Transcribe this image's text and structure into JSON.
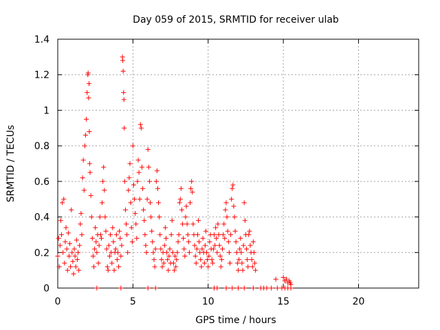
{
  "colors": {
    "series": "#ff0000",
    "grid": "#a0a0a0",
    "axis": "#000000",
    "background": "#ffffff"
  },
  "chart_data": {
    "type": "scatter",
    "title": "Day 059 of 2015, SRMTID for receiver ulab",
    "xlabel": "GPS time / hours",
    "ylabel": "SRMTID / TECUs",
    "xlim": [
      0,
      24
    ],
    "ylim": [
      0,
      1.4
    ],
    "grid": true,
    "marker": "+",
    "xticks": [
      0,
      5,
      10,
      15,
      20
    ],
    "yticks": [
      0,
      0.2,
      0.4,
      0.6,
      0.8,
      1,
      1.2,
      1.4
    ],
    "xtick_labels": [
      "0",
      "5",
      "10",
      "15",
      "20"
    ],
    "ytick_labels": [
      "0",
      "0.2",
      "0.4",
      "0.6",
      "0.8",
      "1",
      "1.2",
      "1.4"
    ],
    "series": [
      {
        "name": "SRMTID",
        "points": [
          [
            0.0,
            0.18
          ],
          [
            0.05,
            0.28
          ],
          [
            0.1,
            0.12
          ],
          [
            0.15,
            0.24
          ],
          [
            0.2,
            0.38
          ],
          [
            0.25,
            0.3
          ],
          [
            0.3,
            0.48
          ],
          [
            0.35,
            0.2
          ],
          [
            0.4,
            0.5
          ],
          [
            0.45,
            0.14
          ],
          [
            0.5,
            0.26
          ],
          [
            0.55,
            0.34
          ],
          [
            0.6,
            0.22
          ],
          [
            0.65,
            0.1
          ],
          [
            0.7,
            0.31
          ],
          [
            0.75,
            0.18
          ],
          [
            0.8,
            0.25
          ],
          [
            0.85,
            0.12
          ],
          [
            0.9,
            0.44
          ],
          [
            0.95,
            0.2
          ],
          [
            1.0,
            0.15
          ],
          [
            1.05,
            0.08
          ],
          [
            1.1,
            0.22
          ],
          [
            1.15,
            0.18
          ],
          [
            1.2,
            0.12
          ],
          [
            1.25,
            0.27
          ],
          [
            1.3,
            0.16
          ],
          [
            1.35,
            0.2
          ],
          [
            1.4,
            0.1
          ],
          [
            1.45,
            0.24
          ],
          [
            1.5,
            0.36
          ],
          [
            1.55,
            0.42
          ],
          [
            1.6,
            0.3
          ],
          [
            1.65,
            0.62
          ],
          [
            1.7,
            0.72
          ],
          [
            1.75,
            0.55
          ],
          [
            1.8,
            0.8
          ],
          [
            1.85,
            0.86
          ],
          [
            1.9,
            0.95
          ],
          [
            1.95,
            1.1
          ],
          [
            2.0,
            1.2
          ],
          [
            2.02,
            1.21
          ],
          [
            2.05,
            1.07
          ],
          [
            2.08,
            1.15
          ],
          [
            2.1,
            0.88
          ],
          [
            2.12,
            0.7
          ],
          [
            2.15,
            0.65
          ],
          [
            2.2,
            0.52
          ],
          [
            2.25,
            0.4
          ],
          [
            2.3,
            0.28
          ],
          [
            2.35,
            0.18
          ],
          [
            2.4,
            0.12
          ],
          [
            2.45,
            0.22
          ],
          [
            2.5,
            0.34
          ],
          [
            2.55,
            0.26
          ],
          [
            2.6,
            0.2
          ],
          [
            2.65,
            0.3
          ],
          [
            2.7,
            0.14
          ],
          [
            2.75,
            0.24
          ],
          [
            2.8,
            0.4
          ],
          [
            2.85,
            0.3
          ],
          [
            2.9,
            0.28
          ],
          [
            2.95,
            0.48
          ],
          [
            3.0,
            0.6
          ],
          [
            3.05,
            0.68
          ],
          [
            3.1,
            0.55
          ],
          [
            3.15,
            0.4
          ],
          [
            3.2,
            0.32
          ],
          [
            3.25,
            0.22
          ],
          [
            3.3,
            0.12
          ],
          [
            3.35,
            0.1
          ],
          [
            3.4,
            0.24
          ],
          [
            3.45,
            0.18
          ],
          [
            3.5,
            0.3
          ],
          [
            3.55,
            0.2
          ],
          [
            3.6,
            0.14
          ],
          [
            3.65,
            0.34
          ],
          [
            3.7,
            0.26
          ],
          [
            3.75,
            0.1
          ],
          [
            3.8,
            0.2
          ],
          [
            3.85,
            0.22
          ],
          [
            3.9,
            0.3
          ],
          [
            3.95,
            0.16
          ],
          [
            4.0,
            0.2
          ],
          [
            4.05,
            0.12
          ],
          [
            4.1,
            0.32
          ],
          [
            4.15,
            0.28
          ],
          [
            4.2,
            0.18
          ],
          [
            4.25,
            0.24
          ],
          [
            4.3,
            1.3
          ],
          [
            4.32,
            1.28
          ],
          [
            4.35,
            1.22
          ],
          [
            4.38,
            1.1
          ],
          [
            4.4,
            1.06
          ],
          [
            4.42,
            0.9
          ],
          [
            4.45,
            0.6
          ],
          [
            4.5,
            0.44
          ],
          [
            4.55,
            0.36
          ],
          [
            4.6,
            0.3
          ],
          [
            4.65,
            0.2
          ],
          [
            4.7,
            0.55
          ],
          [
            4.75,
            0.62
          ],
          [
            4.8,
            0.7
          ],
          [
            4.85,
            0.48
          ],
          [
            4.9,
            0.34
          ],
          [
            4.95,
            0.26
          ],
          [
            5.0,
            0.8
          ],
          [
            5.05,
            0.58
          ],
          [
            5.1,
            0.5
          ],
          [
            5.15,
            0.42
          ],
          [
            5.2,
            0.36
          ],
          [
            5.25,
            0.28
          ],
          [
            5.3,
            0.6
          ],
          [
            5.35,
            0.72
          ],
          [
            5.4,
            0.65
          ],
          [
            5.45,
            0.5
          ],
          [
            5.5,
            0.92
          ],
          [
            5.55,
            0.9
          ],
          [
            5.6,
            0.68
          ],
          [
            5.65,
            0.56
          ],
          [
            5.7,
            0.44
          ],
          [
            5.75,
            0.38
          ],
          [
            5.8,
            0.3
          ],
          [
            5.85,
            0.24
          ],
          [
            5.9,
            0.2
          ],
          [
            5.95,
            0.5
          ],
          [
            6.0,
            0.78
          ],
          [
            6.05,
            0.68
          ],
          [
            6.1,
            0.6
          ],
          [
            6.15,
            0.48
          ],
          [
            6.2,
            0.4
          ],
          [
            6.25,
            0.32
          ],
          [
            6.3,
            0.26
          ],
          [
            6.35,
            0.2
          ],
          [
            6.4,
            0.16
          ],
          [
            6.45,
            0.12
          ],
          [
            6.5,
            0.22
          ],
          [
            6.55,
            0.6
          ],
          [
            6.6,
            0.66
          ],
          [
            6.65,
            0.56
          ],
          [
            6.7,
            0.48
          ],
          [
            6.75,
            0.4
          ],
          [
            6.8,
            0.3
          ],
          [
            6.85,
            0.22
          ],
          [
            6.9,
            0.16
          ],
          [
            6.95,
            0.12
          ],
          [
            7.0,
            0.2
          ],
          [
            7.05,
            0.14
          ],
          [
            7.1,
            0.24
          ],
          [
            7.15,
            0.34
          ],
          [
            7.2,
            0.28
          ],
          [
            7.25,
            0.2
          ],
          [
            7.3,
            0.16
          ],
          [
            7.35,
            0.1
          ],
          [
            7.4,
            0.18
          ],
          [
            7.45,
            0.22
          ],
          [
            7.5,
            0.14
          ],
          [
            7.55,
            0.3
          ],
          [
            7.6,
            0.38
          ],
          [
            7.65,
            0.2
          ],
          [
            7.7,
            0.14
          ],
          [
            7.75,
            0.1
          ],
          [
            7.8,
            0.18
          ],
          [
            7.85,
            0.12
          ],
          [
            7.9,
            0.16
          ],
          [
            7.95,
            0.2
          ],
          [
            8.0,
            0.26
          ],
          [
            8.05,
            0.3
          ],
          [
            8.1,
            0.48
          ],
          [
            8.15,
            0.5
          ],
          [
            8.2,
            0.56
          ],
          [
            8.25,
            0.44
          ],
          [
            8.3,
            0.36
          ],
          [
            8.35,
            0.28
          ],
          [
            8.4,
            0.22
          ],
          [
            8.45,
            0.18
          ],
          [
            8.5,
            0.4
          ],
          [
            8.55,
            0.46
          ],
          [
            8.6,
            0.36
          ],
          [
            8.65,
            0.3
          ],
          [
            8.7,
            0.26
          ],
          [
            8.75,
            0.2
          ],
          [
            8.8,
            0.48
          ],
          [
            8.85,
            0.56
          ],
          [
            8.9,
            0.6
          ],
          [
            8.95,
            0.54
          ],
          [
            9.0,
            0.36
          ],
          [
            9.05,
            0.3
          ],
          [
            9.1,
            0.24
          ],
          [
            9.15,
            0.18
          ],
          [
            9.2,
            0.14
          ],
          [
            9.25,
            0.22
          ],
          [
            9.3,
            0.3
          ],
          [
            9.35,
            0.38
          ],
          [
            9.4,
            0.26
          ],
          [
            9.45,
            0.2
          ],
          [
            9.5,
            0.16
          ],
          [
            9.55,
            0.12
          ],
          [
            9.6,
            0.22
          ],
          [
            9.65,
            0.28
          ],
          [
            9.7,
            0.2
          ],
          [
            9.75,
            0.14
          ],
          [
            9.8,
            0.24
          ],
          [
            9.85,
            0.32
          ],
          [
            9.9,
            0.2
          ],
          [
            9.95,
            0.16
          ],
          [
            10.0,
            0.12
          ],
          [
            10.05,
            0.18
          ],
          [
            10.1,
            0.26
          ],
          [
            10.15,
            0.3
          ],
          [
            10.2,
            0.22
          ],
          [
            10.25,
            0.16
          ],
          [
            10.3,
            0.14
          ],
          [
            10.35,
            0.22
          ],
          [
            10.4,
            0.3
          ],
          [
            10.45,
            0.24
          ],
          [
            10.5,
            0.34
          ],
          [
            10.55,
            0.28
          ],
          [
            10.6,
            0.2
          ],
          [
            10.65,
            0.36
          ],
          [
            10.7,
            0.3
          ],
          [
            10.75,
            0.24
          ],
          [
            10.8,
            0.18
          ],
          [
            10.85,
            0.12
          ],
          [
            10.9,
            0.16
          ],
          [
            10.95,
            0.22
          ],
          [
            11.0,
            0.3
          ],
          [
            11.05,
            0.36
          ],
          [
            11.1,
            0.28
          ],
          [
            11.15,
            0.44
          ],
          [
            11.2,
            0.48
          ],
          [
            11.25,
            0.4
          ],
          [
            11.3,
            0.32
          ],
          [
            11.35,
            0.26
          ],
          [
            11.4,
            0.2
          ],
          [
            11.45,
            0.14
          ],
          [
            11.5,
            0.3
          ],
          [
            11.55,
            0.5
          ],
          [
            11.6,
            0.56
          ],
          [
            11.65,
            0.58
          ],
          [
            11.7,
            0.46
          ],
          [
            11.75,
            0.4
          ],
          [
            11.8,
            0.32
          ],
          [
            11.85,
            0.26
          ],
          [
            11.9,
            0.2
          ],
          [
            11.95,
            0.14
          ],
          [
            12.0,
            0.1
          ],
          [
            12.05,
            0.16
          ],
          [
            12.1,
            0.22
          ],
          [
            12.15,
            0.28
          ],
          [
            12.2,
            0.2
          ],
          [
            12.25,
            0.14
          ],
          [
            12.3,
            0.1
          ],
          [
            12.35,
            0.24
          ],
          [
            12.4,
            0.48
          ],
          [
            12.45,
            0.38
          ],
          [
            12.5,
            0.3
          ],
          [
            12.55,
            0.22
          ],
          [
            12.6,
            0.16
          ],
          [
            12.65,
            0.12
          ],
          [
            12.7,
            0.3
          ],
          [
            12.75,
            0.32
          ],
          [
            12.8,
            0.24
          ],
          [
            12.85,
            0.2
          ],
          [
            12.9,
            0.16
          ],
          [
            12.95,
            0.12
          ],
          [
            13.0,
            0.26
          ],
          [
            13.05,
            0.2
          ],
          [
            13.1,
            0.14
          ],
          [
            13.15,
            0.1
          ],
          [
            14.5,
            0.05
          ],
          [
            15.0,
            0.06
          ],
          [
            15.1,
            0.04
          ],
          [
            15.2,
            0.05
          ],
          [
            15.3,
            0.03
          ],
          [
            15.4,
            0.04
          ],
          [
            15.45,
            0.03
          ],
          [
            15.5,
            0.02
          ],
          [
            2.6,
            0.0
          ],
          [
            4.2,
            0.0
          ],
          [
            6.0,
            0.0
          ],
          [
            6.5,
            0.0
          ],
          [
            10.4,
            0.0
          ],
          [
            10.6,
            0.0
          ],
          [
            11.2,
            0.0
          ],
          [
            11.6,
            0.0
          ],
          [
            12.0,
            0.0
          ],
          [
            12.4,
            0.0
          ],
          [
            13.0,
            0.0
          ],
          [
            13.5,
            0.0
          ],
          [
            13.7,
            0.0
          ],
          [
            13.9,
            0.0
          ],
          [
            14.2,
            0.0
          ],
          [
            14.6,
            0.0
          ],
          [
            14.9,
            0.0
          ],
          [
            15.1,
            0.0
          ],
          [
            15.3,
            0.0
          ],
          [
            15.5,
            0.0
          ]
        ]
      }
    ]
  }
}
